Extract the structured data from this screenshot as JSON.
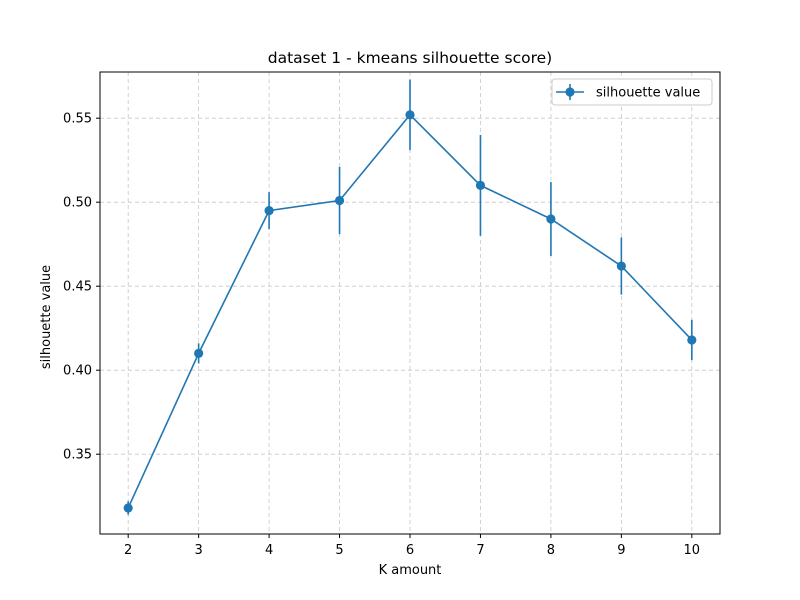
{
  "chart_data": {
    "type": "line",
    "title": "dataset 1 - kmeans silhouette score)",
    "xlabel": "K amount",
    "ylabel": "silhouette value",
    "x": [
      2,
      3,
      4,
      5,
      6,
      7,
      8,
      9,
      10
    ],
    "xlim": [
      1.6,
      10.4
    ],
    "ylim": [
      0.3025,
      0.5775
    ],
    "xticks": [
      2,
      3,
      4,
      5,
      6,
      7,
      8,
      9,
      10
    ],
    "yticks": [
      0.35,
      0.4,
      0.45,
      0.5,
      0.55
    ],
    "grid": true,
    "legend_position": "top-right",
    "series": [
      {
        "name": "silhouette value",
        "color": "#1f77b4",
        "values": [
          0.318,
          0.41,
          0.495,
          0.501,
          0.552,
          0.51,
          0.49,
          0.462,
          0.418
        ],
        "errors": [
          0.004,
          0.006,
          0.011,
          0.02,
          0.021,
          0.03,
          0.022,
          0.017,
          0.012
        ]
      }
    ]
  }
}
